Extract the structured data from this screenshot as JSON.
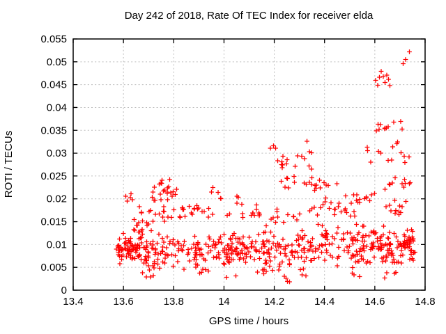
{
  "chart_data": {
    "type": "scatter",
    "title": "Day 242 of 2018, Rate Of TEC Index for receiver elda",
    "xlabel": "GPS time / hours",
    "ylabel": "ROTI / TECUs",
    "xlim": [
      13.4,
      14.8
    ],
    "ylim": [
      0,
      0.055
    ],
    "x_ticks": [
      {
        "v": 13.4,
        "label": "13.4"
      },
      {
        "v": 13.6,
        "label": "13.6"
      },
      {
        "v": 13.8,
        "label": "13.8"
      },
      {
        "v": 14.0,
        "label": "14"
      },
      {
        "v": 14.2,
        "label": "14.2"
      },
      {
        "v": 14.4,
        "label": "14.4"
      },
      {
        "v": 14.6,
        "label": "14.6"
      },
      {
        "v": 14.8,
        "label": "14.8"
      }
    ],
    "y_ticks": [
      {
        "v": 0,
        "label": "0"
      },
      {
        "v": 0.005,
        "label": "0.005"
      },
      {
        "v": 0.01,
        "label": "0.01"
      },
      {
        "v": 0.015,
        "label": "0.015"
      },
      {
        "v": 0.02,
        "label": "0.02"
      },
      {
        "v": 0.025,
        "label": "0.025"
      },
      {
        "v": 0.03,
        "label": "0.03"
      },
      {
        "v": 0.035,
        "label": "0.035"
      },
      {
        "v": 0.04,
        "label": "0.04"
      },
      {
        "v": 0.045,
        "label": "0.045"
      },
      {
        "v": 0.05,
        "label": "0.05"
      },
      {
        "v": 0.055,
        "label": "0.055"
      }
    ],
    "grid": true,
    "legend": "none",
    "marker": "plus",
    "marker_color": "#ff0000",
    "grid_color": "#bdbdbd",
    "border_color": "#000000",
    "seed": 11,
    "series": [
      {
        "name": "ROTI",
        "points": [
          [
            14.738,
            0.0522
          ],
          [
            14.712,
            0.0496
          ],
          [
            14.722,
            0.0505
          ],
          [
            14.603,
            0.0459
          ],
          [
            14.612,
            0.0449
          ],
          [
            14.618,
            0.0466
          ],
          [
            14.625,
            0.0479
          ],
          [
            14.633,
            0.0468
          ],
          [
            14.64,
            0.0455
          ],
          [
            14.647,
            0.0471
          ],
          [
            14.654,
            0.0462
          ],
          [
            14.66,
            0.0448
          ],
          [
            14.33,
            0.0326
          ],
          [
            14.185,
            0.0311
          ],
          [
            14.197,
            0.0316
          ],
          [
            14.205,
            0.0311
          ],
          [
            14.25,
            0.0245
          ],
          [
            14.35,
            0.0246
          ]
        ],
        "clusters": [
          {
            "x": [
              13.57,
              13.66
            ],
            "y": [
              0.006,
              0.0125
            ],
            "n": 42
          },
          {
            "x": [
              13.57,
              13.73
            ],
            "y": [
              0.0045,
              0.0135
            ],
            "n": 40
          },
          {
            "x": [
              13.6,
              13.7
            ],
            "y": [
              0.0125,
              0.0168
            ],
            "n": 12
          },
          {
            "x": [
              13.595,
              13.64
            ],
            "y": [
              0.019,
              0.0212
            ],
            "n": 5
          },
          {
            "x": [
              13.65,
              13.68
            ],
            "y": [
              0.0168,
              0.0188
            ],
            "n": 3
          },
          {
            "x": [
              13.7,
              13.84
            ],
            "y": [
              0.0145,
              0.019
            ],
            "n": 15
          },
          {
            "x": [
              13.71,
              13.815
            ],
            "y": [
              0.019,
              0.0256
            ],
            "n": 21
          },
          {
            "x": [
              13.675,
              13.72
            ],
            "y": [
              0.0026,
              0.004
            ],
            "n": 4
          },
          {
            "x": [
              13.66,
              13.9
            ],
            "y": [
              0.0042,
              0.0135
            ],
            "n": 78
          },
          {
            "x": [
              13.81,
              13.96
            ],
            "y": [
              0.0152,
              0.019
            ],
            "n": 18
          },
          {
            "x": [
              13.765,
              13.8
            ],
            "y": [
              0.0205,
              0.022
            ],
            "n": 3
          },
          {
            "x": [
              13.95,
              13.99
            ],
            "y": [
              0.0195,
              0.0225
            ],
            "n": 5
          },
          {
            "x": [
              13.88,
              14.02
            ],
            "y": [
              0.005,
              0.0125
            ],
            "n": 50
          },
          {
            "x": [
              13.9,
              13.94
            ],
            "y": [
              0.0035,
              0.005
            ],
            "n": 5
          },
          {
            "x": [
              13.98,
              14.17
            ],
            "y": [
              0.0135,
              0.0195
            ],
            "n": 16
          },
          {
            "x": [
              14.04,
              14.08
            ],
            "y": [
              0.0198,
              0.021
            ],
            "n": 2
          },
          {
            "x": [
              14.0,
              14.18
            ],
            "y": [
              0.0045,
              0.0132
            ],
            "n": 85
          },
          {
            "x": [
              14.0,
              14.05
            ],
            "y": [
              0.0028,
              0.0038
            ],
            "n": 2
          },
          {
            "x": [
              14.12,
              14.2
            ],
            "y": [
              0.0032,
              0.0046
            ],
            "n": 5
          },
          {
            "x": [
              14.17,
              14.33
            ],
            "y": [
              0.004,
              0.0135
            ],
            "n": 60
          },
          {
            "x": [
              14.18,
              14.31
            ],
            "y": [
              0.0135,
              0.0185
            ],
            "n": 12
          },
          {
            "x": [
              14.21,
              14.35
            ],
            "y": [
              0.0256,
              0.0305
            ],
            "n": 16
          },
          {
            "x": [
              14.22,
              14.36
            ],
            "y": [
              0.0213,
              0.0252
            ],
            "n": 10
          },
          {
            "x": [
              14.2,
              14.28
            ],
            "y": [
              0.0018,
              0.0034
            ],
            "n": 4
          },
          {
            "x": [
              14.29,
              14.33
            ],
            "y": [
              0.0028,
              0.0042
            ],
            "n": 2
          },
          {
            "x": [
              14.33,
              14.47
            ],
            "y": [
              0.0048,
              0.0148
            ],
            "n": 48
          },
          {
            "x": [
              14.34,
              14.46
            ],
            "y": [
              0.015,
              0.0205
            ],
            "n": 14
          },
          {
            "x": [
              14.36,
              14.46
            ],
            "y": [
              0.021,
              0.0248
            ],
            "n": 10
          },
          {
            "x": [
              14.44,
              14.53
            ],
            "y": [
              0.0152,
              0.0185
            ],
            "n": 8
          },
          {
            "x": [
              14.47,
              14.6
            ],
            "y": [
              0.0185,
              0.0228
            ],
            "n": 14
          },
          {
            "x": [
              14.47,
              14.61
            ],
            "y": [
              0.0048,
              0.015
            ],
            "n": 68
          },
          {
            "x": [
              14.51,
              14.57
            ],
            "y": [
              0.0025,
              0.004
            ],
            "n": 3
          },
          {
            "x": [
              14.55,
              14.74
            ],
            "y": [
              0.027,
              0.0332
            ],
            "n": 14
          },
          {
            "x": [
              14.57,
              14.71
            ],
            "y": [
              0.0342,
              0.0374
            ],
            "n": 11
          },
          {
            "x": [
              14.64,
              14.74
            ],
            "y": [
              0.0213,
              0.0247
            ],
            "n": 11
          },
          {
            "x": [
              14.6,
              14.76
            ],
            "y": [
              0.0045,
              0.0148
            ],
            "n": 80
          },
          {
            "x": [
              14.61,
              14.73
            ],
            "y": [
              0.0148,
              0.0198
            ],
            "n": 12
          },
          {
            "x": [
              14.7,
              14.755
            ],
            "y": [
              0.008,
              0.0135
            ],
            "n": 16
          },
          {
            "x": [
              14.63,
              14.7
            ],
            "y": [
              0.0026,
              0.004
            ],
            "n": 4
          }
        ]
      }
    ]
  }
}
